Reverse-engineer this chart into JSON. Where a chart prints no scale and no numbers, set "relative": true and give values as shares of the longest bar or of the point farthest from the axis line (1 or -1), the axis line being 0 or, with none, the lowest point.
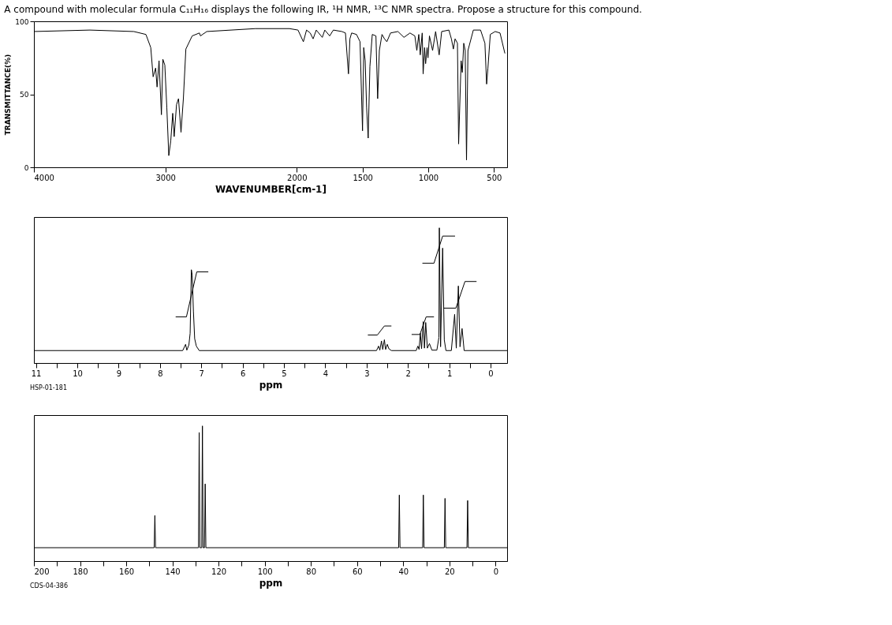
{
  "chart_data": [
    {
      "type": "line",
      "title": "A compound with molecular formula C₁₁H₁₆ displays the following IR, ¹H NMR, ¹³C NMR spectra. Propose a structure for this compound.",
      "xlabel": "WAVENUMBER[cm-1]",
      "ylabel": "TRANSMITTANCE(%)",
      "xlim": [
        4000,
        400
      ],
      "ylim": [
        0,
        100
      ],
      "xticks": [
        4000,
        3000,
        2000,
        1500,
        1000,
        500
      ],
      "yticks": [
        0,
        50,
        100
      ],
      "grid": false,
      "series": [
        {
          "color": "#000000",
          "x": [
            4000,
            3574,
            3240,
            3148,
            3111,
            3093,
            3074,
            3063,
            3048,
            3030,
            3019,
            3004,
            2989,
            2974,
            2959,
            2944,
            2933,
            2915,
            2900,
            2881,
            2863,
            2844,
            2796,
            2741,
            2733,
            2685,
            2315,
            2056,
            1991,
            1950,
            1926,
            1898,
            1876,
            1852,
            1806,
            1787,
            1750,
            1722,
            1657,
            1630,
            1607,
            1596,
            1583,
            1546,
            1519,
            1500,
            1491,
            1480,
            1469,
            1457,
            1444,
            1426,
            1398,
            1385,
            1372,
            1352,
            1333,
            1315,
            1287,
            1231,
            1185,
            1139,
            1102,
            1087,
            1072,
            1061,
            1046,
            1039,
            1028,
            1020,
            1009,
            1002,
            991,
            967,
            944,
            917,
            898,
            843,
            824,
            809,
            796,
            778,
            769,
            750,
            741,
            730,
            719,
            709,
            698,
            657,
            602,
            569,
            556,
            546,
            528,
            491,
            454,
            417
          ],
          "values": [
            93,
            94,
            93,
            91,
            82,
            62,
            68,
            55,
            73,
            36,
            74,
            70,
            41,
            8,
            18,
            37,
            21,
            43,
            47,
            24,
            47,
            81,
            90,
            92,
            90,
            93,
            95,
            95,
            94,
            86,
            94,
            92,
            88,
            94,
            89,
            94,
            90,
            94,
            93,
            92,
            64,
            88,
            92,
            91,
            86,
            25,
            82,
            73,
            41,
            20,
            69,
            91,
            90,
            47,
            80,
            91,
            88,
            86,
            92,
            93,
            89,
            92,
            90,
            80,
            91,
            77,
            92,
            64,
            82,
            71,
            82,
            75,
            90,
            80,
            93,
            77,
            93,
            94,
            88,
            81,
            88,
            85,
            16,
            73,
            65,
            85,
            80,
            5,
            80,
            94,
            94,
            85,
            57,
            68,
            91,
            93,
            92,
            78
          ]
        }
      ]
    },
    {
      "type": "line",
      "relative": true,
      "xlabel": "ppm",
      "xlim": [
        11.05,
        -0.4
      ],
      "xticks": [
        11,
        {
          "value": 10.5,
          "label": null
        },
        10,
        {
          "value": 9.5,
          "label": null
        },
        9,
        {
          "value": 8.5,
          "label": null
        },
        8,
        {
          "value": 7.5,
          "label": null
        },
        7,
        {
          "value": 6.5,
          "label": null
        },
        6,
        {
          "value": 5.5,
          "label": null
        },
        5,
        {
          "value": 4.5,
          "label": null
        },
        4,
        {
          "value": 3.5,
          "label": null
        },
        3,
        {
          "value": 2.5,
          "label": null
        },
        2,
        {
          "value": 1.5,
          "label": null
        },
        1,
        {
          "value": 0.5,
          "label": null
        },
        0
      ],
      "grid": false,
      "annotations": [
        "HSP-01-181"
      ],
      "series": [
        {
          "color": "#000000",
          "x": [
            11.05,
            7.45,
            7.38,
            7.35,
            7.3,
            7.27,
            7.24,
            7.22,
            7.19,
            7.16,
            7.12,
            7.05,
            2.76,
            2.71,
            2.68,
            2.64,
            2.61,
            2.57,
            2.54,
            2.5,
            2.46,
            2.4,
            1.8,
            1.76,
            1.73,
            1.7,
            1.67,
            1.63,
            1.6,
            1.57,
            1.53,
            1.48,
            1.42,
            1.3,
            1.25,
            1.24,
            1.21,
            1.16,
            1.12,
            1.08,
            0.95,
            0.87,
            0.83,
            0.78,
            0.74,
            0.69,
            0.64,
            -0.4
          ],
          "values": [
            0.092,
            0.092,
            0.138,
            0.095,
            0.134,
            0.22,
            0.69,
            0.65,
            0.38,
            0.18,
            0.125,
            0.092,
            0.092,
            0.125,
            0.095,
            0.163,
            0.1,
            0.172,
            0.1,
            0.138,
            0.105,
            0.092,
            0.092,
            0.125,
            0.1,
            0.22,
            0.105,
            0.306,
            0.11,
            0.3,
            0.11,
            0.144,
            0.095,
            0.095,
            0.19,
            1.0,
            0.12,
            0.85,
            0.17,
            0.092,
            0.092,
            0.36,
            0.11,
            0.57,
            0.12,
            0.255,
            0.092,
            0.092
          ]
        },
        {
          "color": "#000000",
          "x": [
            7.62,
            7.36,
            7.11,
            6.83
          ],
          "values": [
            0.341,
            0.341,
            0.674,
            0.674
          ]
        },
        {
          "color": "#000000",
          "x": [
            2.97,
            2.74,
            2.57,
            2.4
          ],
          "values": [
            0.207,
            0.207,
            0.274,
            0.274
          ]
        },
        {
          "color": "#000000",
          "x": [
            1.91,
            1.71,
            1.56,
            1.37
          ],
          "values": [
            0.211,
            0.211,
            0.341,
            0.341
          ]
        },
        {
          "color": "#000000",
          "x": [
            1.65,
            1.37,
            1.16,
            0.86
          ],
          "values": [
            0.738,
            0.738,
            0.939,
            0.939
          ]
        },
        {
          "color": "#000000",
          "x": [
            1.13,
            0.84,
            0.62,
            0.34
          ],
          "values": [
            0.406,
            0.406,
            0.603,
            0.603
          ]
        }
      ]
    },
    {
      "type": "line",
      "relative": true,
      "xlabel": "ppm",
      "xlim": [
        200,
        -5
      ],
      "xticks": [
        200,
        {
          "value": 190,
          "label": null
        },
        180,
        {
          "value": 170,
          "label": null
        },
        160,
        {
          "value": 150,
          "label": null
        },
        140,
        {
          "value": 130,
          "label": null
        },
        120,
        {
          "value": 110,
          "label": null
        },
        100,
        {
          "value": 90,
          "label": null
        },
        80,
        {
          "value": 70,
          "label": null
        },
        60,
        {
          "value": 50,
          "label": null
        },
        40,
        {
          "value": 30,
          "label": null
        },
        20,
        {
          "value": 10,
          "label": null
        },
        0
      ],
      "grid": false,
      "annotations": [
        "CDS-04-386"
      ],
      "series": [
        {
          "color": "#000000",
          "x": [
            200,
            147.9,
            147.6,
            147.3,
            128.7,
            128.4,
            128.1,
            127.3,
            127.0,
            126.7,
            126.1,
            125.8,
            125.5,
            42.0,
            41.7,
            41.4,
            31.6,
            31.3,
            31.0,
            22.2,
            21.9,
            21.6,
            12.4,
            12.1,
            11.8,
            -5
          ],
          "values": [
            0.099,
            0.099,
            0.337,
            0.099,
            0.099,
            0.951,
            0.099,
            0.099,
            1.0,
            0.099,
            0.099,
            0.571,
            0.099,
            0.099,
            0.489,
            0.099,
            0.099,
            0.489,
            0.099,
            0.099,
            0.464,
            0.099,
            0.099,
            0.448,
            0.099,
            0.099
          ]
        }
      ]
    }
  ]
}
